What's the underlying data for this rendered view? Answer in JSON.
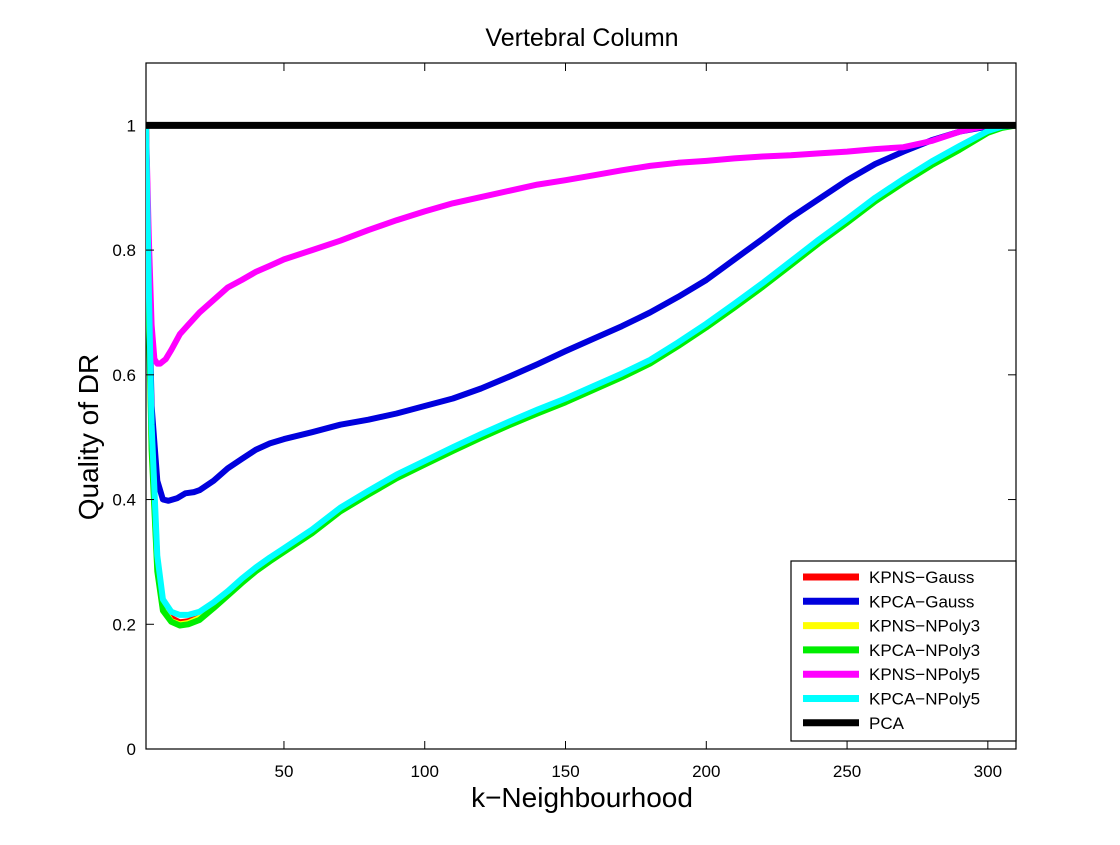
{
  "chart_data": {
    "type": "line",
    "title": "Vertebral Column",
    "xlabel": "k−Neighbourhood",
    "ylabel": "Quality of DR",
    "xlim": [
      1,
      310
    ],
    "ylim": [
      0,
      1.1
    ],
    "xticks": [
      50,
      100,
      150,
      200,
      250,
      300
    ],
    "yticks": [
      0,
      0.2,
      0.4,
      0.6,
      0.8,
      1
    ],
    "xtick_labels": [
      "50",
      "100",
      "150",
      "200",
      "250",
      "300"
    ],
    "ytick_labels": [
      "0",
      "0.2",
      "0.4",
      "0.6",
      "0.8",
      "1"
    ],
    "grid": false,
    "legend_position": "bottom-right",
    "series": [
      {
        "name": "KPNS−Gauss",
        "color": "#ff0000",
        "x": [
          1,
          2,
          3,
          5,
          7,
          10,
          13,
          16,
          20,
          25,
          30,
          35,
          40,
          45,
          50,
          60,
          70,
          80,
          90,
          100,
          110,
          120,
          130,
          140,
          150,
          160,
          170,
          180,
          190,
          200,
          210,
          220,
          230,
          240,
          250,
          260,
          270,
          280,
          290,
          300,
          305,
          310
        ],
        "y": [
          1,
          0.72,
          0.5,
          0.3,
          0.23,
          0.21,
          0.203,
          0.205,
          0.212,
          0.23,
          0.25,
          0.27,
          0.288,
          0.305,
          0.32,
          0.35,
          0.385,
          0.412,
          0.438,
          0.46,
          0.482,
          0.503,
          0.523,
          0.542,
          0.56,
          0.58,
          0.6,
          0.622,
          0.65,
          0.68,
          0.712,
          0.745,
          0.78,
          0.815,
          0.848,
          0.882,
          0.912,
          0.94,
          0.965,
          0.99,
          0.997,
          1
        ]
      },
      {
        "name": "KPCA−Gauss",
        "color": "#0000dd",
        "x": [
          1,
          2,
          3,
          5,
          7,
          9,
          12,
          15,
          18,
          20,
          25,
          30,
          35,
          40,
          45,
          50,
          60,
          70,
          80,
          90,
          100,
          110,
          120,
          130,
          140,
          150,
          160,
          170,
          180,
          190,
          200,
          210,
          220,
          230,
          240,
          250,
          260,
          270,
          280,
          290,
          300,
          305,
          310
        ],
        "y": [
          1,
          0.75,
          0.55,
          0.43,
          0.4,
          0.398,
          0.402,
          0.41,
          0.412,
          0.415,
          0.43,
          0.45,
          0.465,
          0.48,
          0.49,
          0.497,
          0.508,
          0.52,
          0.528,
          0.538,
          0.55,
          0.562,
          0.578,
          0.597,
          0.617,
          0.638,
          0.658,
          0.678,
          0.7,
          0.725,
          0.752,
          0.785,
          0.818,
          0.852,
          0.882,
          0.912,
          0.938,
          0.958,
          0.976,
          0.99,
          0.998,
          1,
          1
        ]
      },
      {
        "name": "KPNS−NPoly3",
        "color": "#ffff00",
        "x": [
          1,
          2,
          3,
          5,
          7,
          10,
          13,
          16,
          20,
          25,
          30,
          35,
          40,
          45,
          50,
          60,
          70,
          80,
          90,
          100,
          110,
          120,
          130,
          140,
          150,
          160,
          170,
          180,
          190,
          200,
          210,
          220,
          230,
          240,
          250,
          260,
          270,
          280,
          290,
          300,
          305,
          310
        ],
        "y": [
          1,
          0.71,
          0.49,
          0.29,
          0.225,
          0.205,
          0.2,
          0.202,
          0.21,
          0.228,
          0.248,
          0.268,
          0.287,
          0.303,
          0.318,
          0.348,
          0.383,
          0.41,
          0.436,
          0.458,
          0.48,
          0.501,
          0.521,
          0.54,
          0.558,
          0.578,
          0.598,
          0.62,
          0.648,
          0.678,
          0.71,
          0.743,
          0.778,
          0.813,
          0.846,
          0.88,
          0.91,
          0.938,
          0.963,
          0.989,
          0.997,
          1
        ]
      },
      {
        "name": "KPCA−NPoly3",
        "color": "#00ee00",
        "x": [
          1,
          2,
          3,
          5,
          7,
          10,
          13,
          16,
          20,
          25,
          30,
          35,
          40,
          45,
          50,
          60,
          70,
          80,
          90,
          100,
          110,
          120,
          130,
          140,
          150,
          160,
          170,
          180,
          190,
          200,
          210,
          220,
          230,
          240,
          250,
          260,
          270,
          280,
          290,
          300,
          305,
          310
        ],
        "y": [
          1,
          0.7,
          0.48,
          0.285,
          0.222,
          0.204,
          0.198,
          0.2,
          0.207,
          0.226,
          0.246,
          0.266,
          0.285,
          0.301,
          0.316,
          0.346,
          0.381,
          0.408,
          0.434,
          0.456,
          0.478,
          0.499,
          0.519,
          0.538,
          0.556,
          0.576,
          0.596,
          0.618,
          0.646,
          0.676,
          0.708,
          0.741,
          0.776,
          0.811,
          0.844,
          0.878,
          0.908,
          0.936,
          0.961,
          0.988,
          0.996,
          1
        ]
      },
      {
        "name": "KPNS−NPoly5",
        "color": "#ff00ff",
        "x": [
          1,
          2,
          3,
          4,
          5,
          6,
          8,
          10,
          13,
          16,
          20,
          25,
          30,
          35,
          40,
          45,
          50,
          60,
          70,
          80,
          90,
          100,
          110,
          120,
          130,
          140,
          150,
          160,
          170,
          180,
          190,
          200,
          210,
          220,
          230,
          240,
          250,
          260,
          270,
          280,
          290,
          300,
          305,
          310
        ],
        "y": [
          1,
          0.82,
          0.68,
          0.625,
          0.618,
          0.618,
          0.625,
          0.64,
          0.665,
          0.68,
          0.7,
          0.72,
          0.74,
          0.752,
          0.765,
          0.775,
          0.785,
          0.8,
          0.815,
          0.832,
          0.848,
          0.862,
          0.875,
          0.885,
          0.895,
          0.905,
          0.912,
          0.92,
          0.928,
          0.935,
          0.94,
          0.943,
          0.947,
          0.95,
          0.952,
          0.955,
          0.958,
          0.962,
          0.965,
          0.975,
          0.99,
          1,
          1,
          1
        ]
      },
      {
        "name": "KPCA−NPoly5",
        "color": "#00ffff",
        "x": [
          1,
          2,
          3,
          5,
          7,
          10,
          13,
          16,
          20,
          25,
          30,
          35,
          40,
          45,
          50,
          60,
          70,
          80,
          90,
          100,
          110,
          120,
          130,
          140,
          150,
          160,
          170,
          180,
          190,
          200,
          210,
          220,
          230,
          240,
          250,
          260,
          270,
          280,
          290,
          300,
          305,
          310
        ],
        "y": [
          1,
          0.74,
          0.52,
          0.31,
          0.24,
          0.22,
          0.215,
          0.215,
          0.22,
          0.235,
          0.253,
          0.273,
          0.291,
          0.307,
          0.322,
          0.352,
          0.387,
          0.414,
          0.44,
          0.462,
          0.484,
          0.505,
          0.525,
          0.544,
          0.562,
          0.582,
          0.602,
          0.624,
          0.652,
          0.682,
          0.714,
          0.747,
          0.782,
          0.817,
          0.85,
          0.884,
          0.914,
          0.942,
          0.967,
          0.991,
          0.998,
          1
        ]
      },
      {
        "name": "PCA",
        "color": "#000000",
        "x": [
          1,
          310
        ],
        "y": [
          1,
          1
        ]
      }
    ]
  }
}
